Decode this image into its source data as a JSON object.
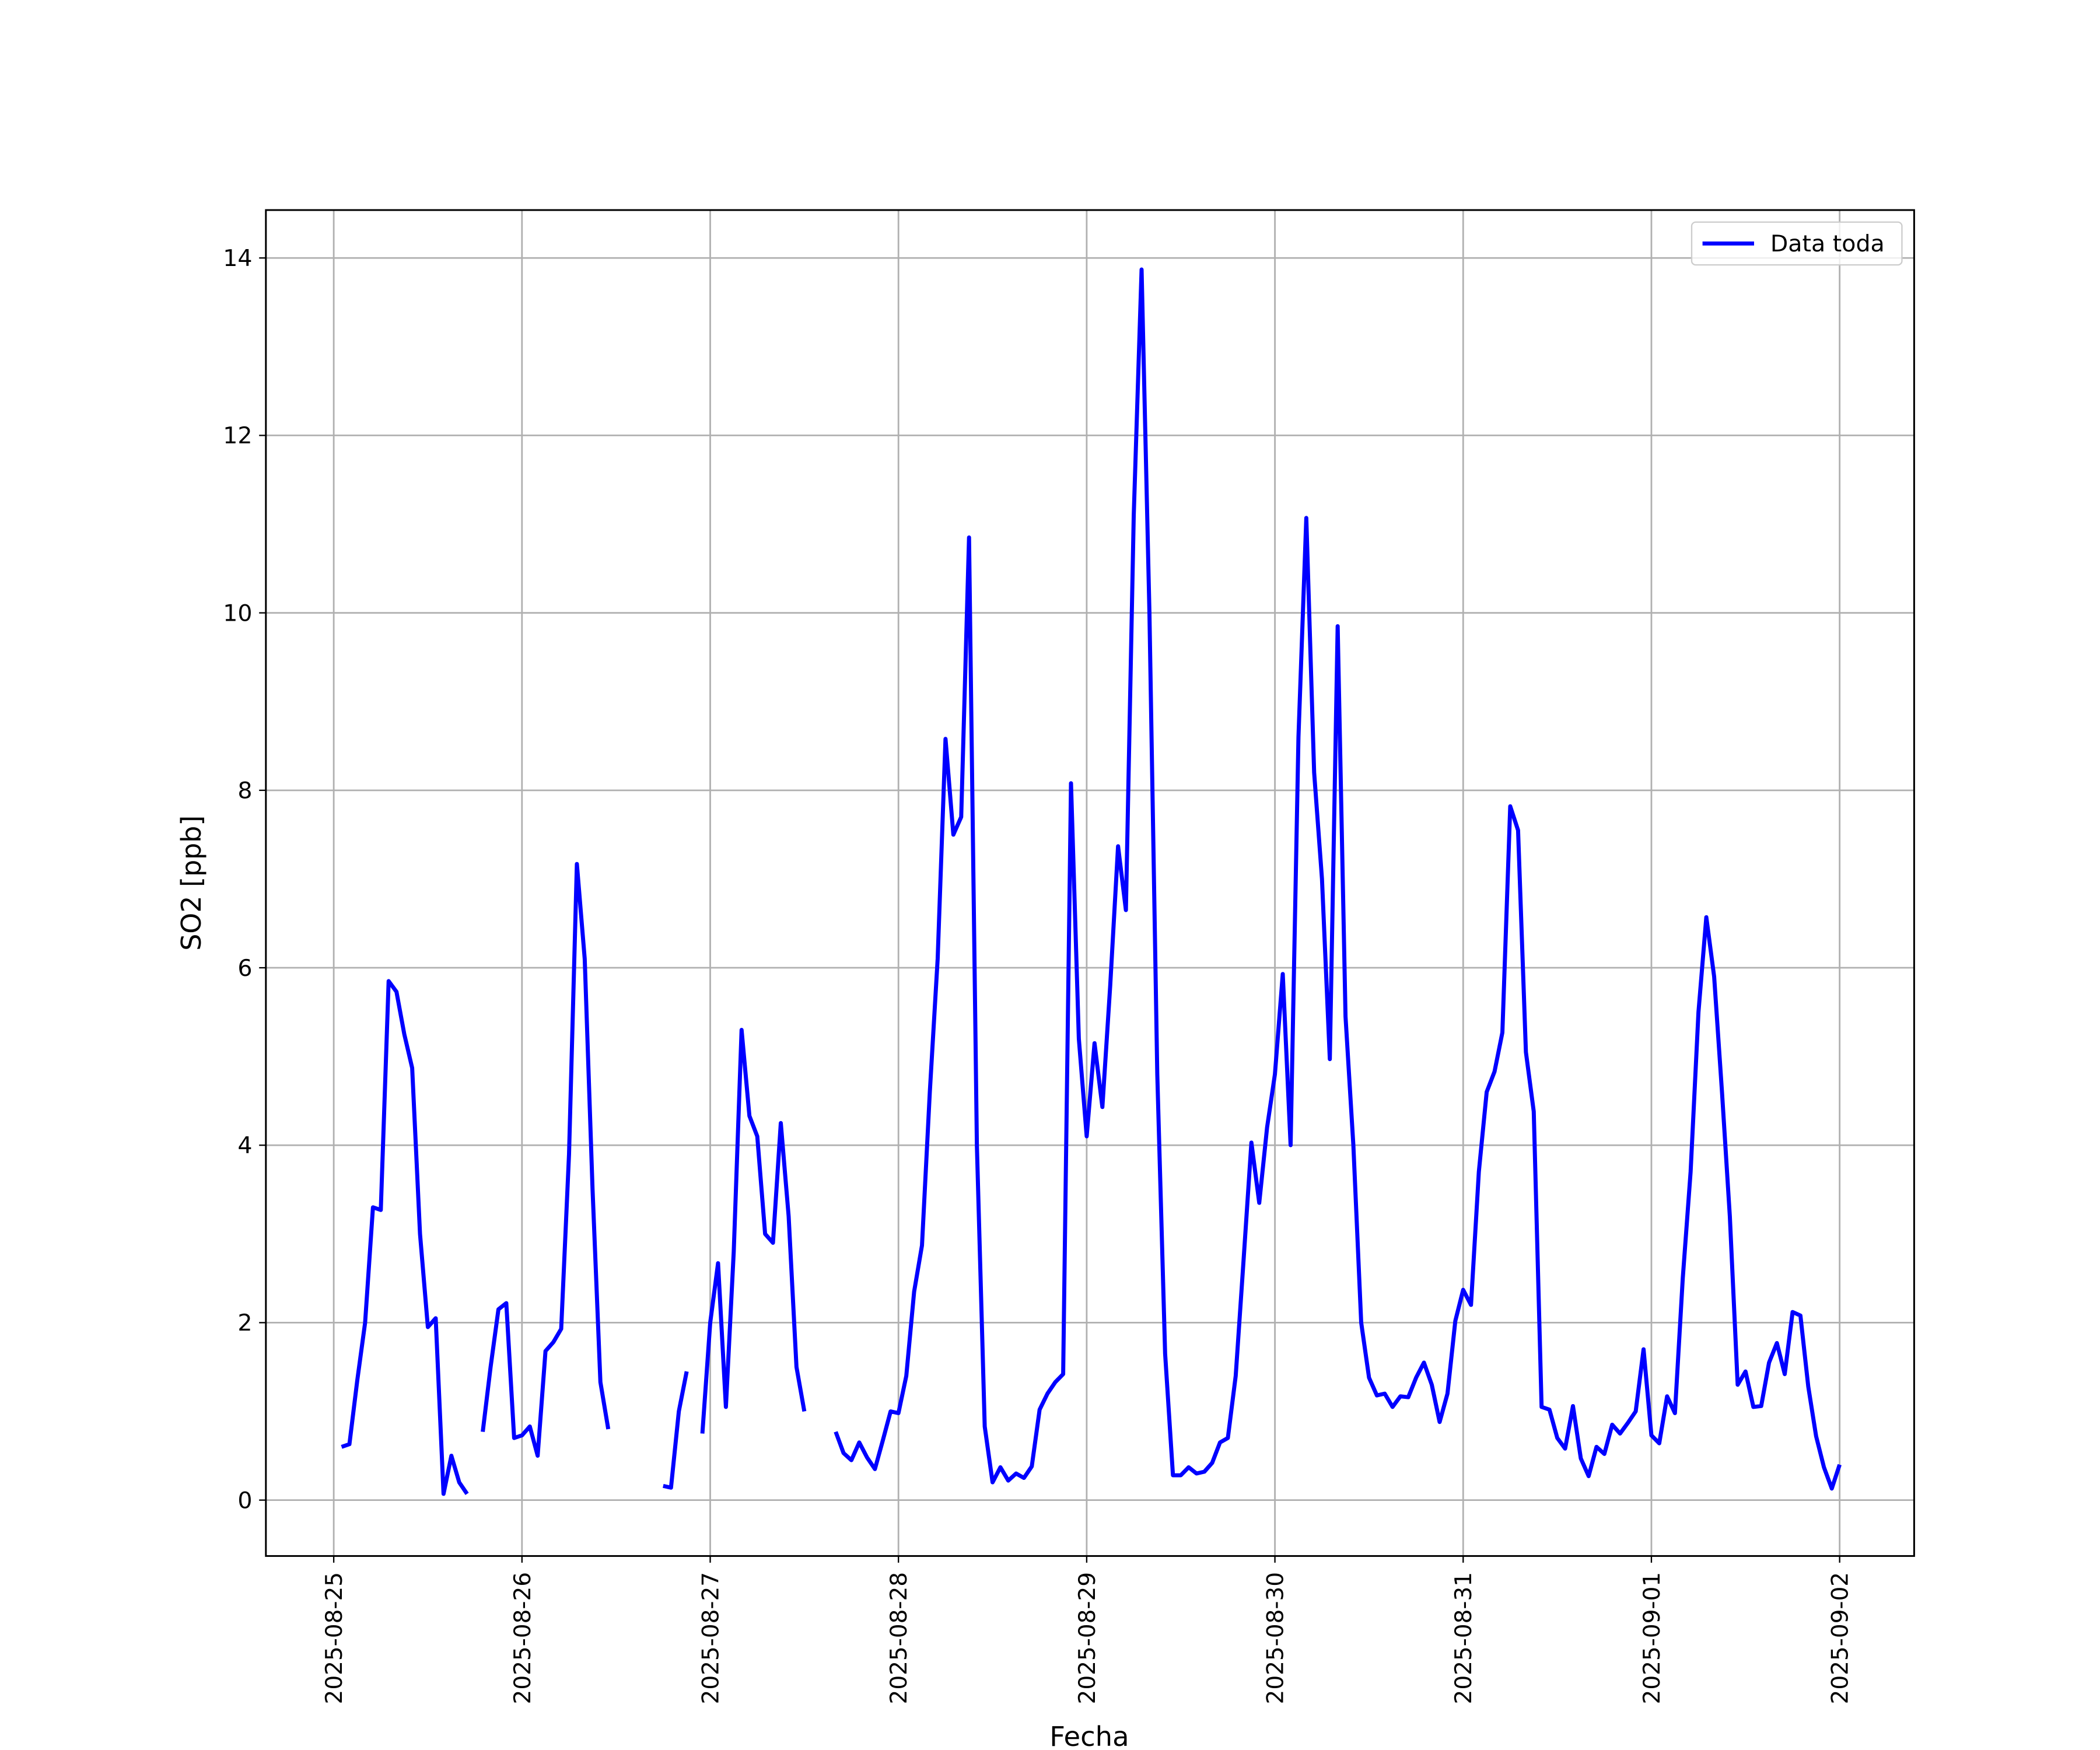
{
  "chart_data": {
    "type": "line",
    "xlabel": "Fecha",
    "ylabel": "SO2 [ppb]",
    "x": [
      "2025-08-25 01:00",
      "2025-08-25 02:00",
      "2025-08-25 03:00",
      "2025-08-25 04:00",
      "2025-08-25 05:00",
      "2025-08-25 06:00",
      "2025-08-25 07:00",
      "2025-08-25 08:00",
      "2025-08-25 09:00",
      "2025-08-25 10:00",
      "2025-08-25 11:00",
      "2025-08-25 12:00",
      "2025-08-25 13:00",
      "2025-08-25 14:00",
      "2025-08-25 15:00",
      "2025-08-25 16:00",
      "2025-08-25 17:00",
      "2025-08-25 18:00",
      "2025-08-25 19:00",
      "2025-08-25 20:00",
      "2025-08-25 21:00",
      "2025-08-25 22:00",
      "2025-08-25 23:00",
      "2025-08-26 00:00",
      "2025-08-26 01:00",
      "2025-08-26 02:00",
      "2025-08-26 03:00",
      "2025-08-26 04:00",
      "2025-08-26 05:00",
      "2025-08-26 06:00",
      "2025-08-26 07:00",
      "2025-08-26 08:00",
      "2025-08-26 09:00",
      "2025-08-26 10:00",
      "2025-08-26 11:00",
      "2025-08-26 12:00",
      "2025-08-26 13:00",
      "2025-08-26 14:00",
      "2025-08-26 15:00",
      "2025-08-26 16:00",
      "2025-08-26 17:00",
      "2025-08-26 18:00",
      "2025-08-26 19:00",
      "2025-08-26 20:00",
      "2025-08-26 21:00",
      "2025-08-26 22:00",
      "2025-08-26 23:00",
      "2025-08-27 00:00",
      "2025-08-27 01:00",
      "2025-08-27 02:00",
      "2025-08-27 03:00",
      "2025-08-27 04:00",
      "2025-08-27 05:00",
      "2025-08-27 06:00",
      "2025-08-27 07:00",
      "2025-08-27 08:00",
      "2025-08-27 09:00",
      "2025-08-27 10:00",
      "2025-08-27 11:00",
      "2025-08-27 12:00",
      "2025-08-27 13:00",
      "2025-08-27 14:00",
      "2025-08-27 15:00",
      "2025-08-27 16:00",
      "2025-08-27 17:00",
      "2025-08-27 18:00",
      "2025-08-27 19:00",
      "2025-08-27 20:00",
      "2025-08-27 21:00",
      "2025-08-27 22:00",
      "2025-08-27 23:00",
      "2025-08-28 00:00",
      "2025-08-28 01:00",
      "2025-08-28 02:00",
      "2025-08-28 03:00",
      "2025-08-28 04:00",
      "2025-08-28 05:00",
      "2025-08-28 06:00",
      "2025-08-28 07:00",
      "2025-08-28 08:00",
      "2025-08-28 09:00",
      "2025-08-28 10:00",
      "2025-08-28 11:00",
      "2025-08-28 12:00",
      "2025-08-28 13:00",
      "2025-08-28 14:00",
      "2025-08-28 15:00",
      "2025-08-28 16:00",
      "2025-08-28 17:00",
      "2025-08-28 18:00",
      "2025-08-28 19:00",
      "2025-08-28 20:00",
      "2025-08-28 21:00",
      "2025-08-28 22:00",
      "2025-08-28 23:00",
      "2025-08-29 00:00",
      "2025-08-29 01:00",
      "2025-08-29 02:00",
      "2025-08-29 03:00",
      "2025-08-29 04:00",
      "2025-08-29 05:00",
      "2025-08-29 06:00",
      "2025-08-29 07:00",
      "2025-08-29 08:00",
      "2025-08-29 09:00",
      "2025-08-29 10:00",
      "2025-08-29 11:00",
      "2025-08-29 12:00",
      "2025-08-29 13:00",
      "2025-08-29 14:00",
      "2025-08-29 15:00",
      "2025-08-29 16:00",
      "2025-08-29 17:00",
      "2025-08-29 18:00",
      "2025-08-29 19:00",
      "2025-08-29 20:00",
      "2025-08-29 21:00",
      "2025-08-29 22:00",
      "2025-08-29 23:00",
      "2025-08-30 00:00",
      "2025-08-30 01:00",
      "2025-08-30 02:00",
      "2025-08-30 03:00",
      "2025-08-30 04:00",
      "2025-08-30 05:00",
      "2025-08-30 06:00",
      "2025-08-30 07:00",
      "2025-08-30 08:00",
      "2025-08-30 09:00",
      "2025-08-30 10:00",
      "2025-08-30 11:00",
      "2025-08-30 12:00",
      "2025-08-30 13:00",
      "2025-08-30 14:00",
      "2025-08-30 15:00",
      "2025-08-30 16:00",
      "2025-08-30 17:00",
      "2025-08-30 18:00",
      "2025-08-30 19:00",
      "2025-08-30 20:00",
      "2025-08-30 21:00",
      "2025-08-30 22:00",
      "2025-08-30 23:00",
      "2025-08-31 00:00",
      "2025-08-31 01:00",
      "2025-08-31 02:00",
      "2025-08-31 03:00",
      "2025-08-31 04:00",
      "2025-08-31 05:00",
      "2025-08-31 06:00",
      "2025-08-31 07:00",
      "2025-08-31 08:00",
      "2025-08-31 09:00",
      "2025-08-31 10:00",
      "2025-08-31 11:00",
      "2025-08-31 12:00",
      "2025-08-31 13:00",
      "2025-08-31 14:00",
      "2025-08-31 15:00",
      "2025-08-31 16:00",
      "2025-08-31 17:00",
      "2025-08-31 18:00",
      "2025-08-31 19:00",
      "2025-08-31 20:00",
      "2025-08-31 21:00",
      "2025-08-31 22:00",
      "2025-08-31 23:00",
      "2025-09-01 00:00",
      "2025-09-01 01:00",
      "2025-09-01 02:00",
      "2025-09-01 03:00",
      "2025-09-01 04:00",
      "2025-09-01 05:00",
      "2025-09-01 06:00",
      "2025-09-01 07:00",
      "2025-09-01 08:00",
      "2025-09-01 09:00",
      "2025-09-01 10:00",
      "2025-09-01 11:00",
      "2025-09-01 12:00",
      "2025-09-01 13:00",
      "2025-09-01 14:00",
      "2025-09-01 15:00",
      "2025-09-01 16:00",
      "2025-09-01 17:00",
      "2025-09-01 18:00",
      "2025-09-01 19:00",
      "2025-09-01 20:00",
      "2025-09-01 21:00",
      "2025-09-01 22:00",
      "2025-09-01 23:00",
      "2025-09-02 00:00"
    ],
    "series": [
      {
        "name": "Data toda",
        "color": "#0000ff",
        "values": [
          0.6,
          0.63,
          1.35,
          2.0,
          3.3,
          3.27,
          5.85,
          5.73,
          5.25,
          4.87,
          3.0,
          1.95,
          2.05,
          0.07,
          0.5,
          0.2,
          0.07,
          null,
          0.77,
          1.5,
          2.15,
          2.22,
          0.7,
          0.73,
          0.83,
          0.5,
          1.68,
          1.78,
          1.93,
          3.9,
          7.17,
          6.1,
          3.5,
          1.33,
          0.8,
          null,
          null,
          null,
          null,
          null,
          null,
          0.16,
          0.14,
          1.0,
          1.45,
          null,
          0.75,
          2.0,
          2.67,
          1.05,
          2.8,
          5.3,
          4.33,
          4.1,
          3.0,
          2.9,
          4.25,
          3.2,
          1.5,
          1.0,
          null,
          null,
          null,
          0.77,
          0.53,
          0.45,
          0.65,
          0.48,
          0.35,
          0.67,
          1.0,
          0.98,
          1.4,
          2.35,
          2.87,
          4.6,
          6.1,
          8.58,
          7.5,
          7.7,
          10.85,
          4.0,
          0.83,
          0.2,
          0.37,
          0.22,
          0.3,
          0.25,
          0.38,
          1.02,
          1.2,
          1.33,
          1.42,
          8.08,
          5.2,
          4.1,
          5.15,
          4.43,
          5.8,
          7.37,
          6.65,
          11.1,
          13.87,
          10.0,
          4.8,
          1.65,
          0.28,
          0.28,
          0.37,
          0.3,
          0.32,
          0.42,
          0.65,
          0.7,
          1.4,
          2.7,
          4.03,
          3.35,
          4.2,
          4.8,
          5.93,
          4.0,
          8.6,
          11.07,
          8.2,
          7.0,
          4.97,
          9.85,
          5.45,
          4.0,
          2.0,
          1.38,
          1.18,
          1.2,
          1.05,
          1.17,
          1.16,
          1.38,
          1.55,
          1.3,
          0.88,
          1.2,
          2.02,
          2.37,
          2.2,
          3.7,
          4.6,
          4.83,
          5.27,
          7.82,
          7.55,
          5.05,
          4.38,
          1.05,
          1.02,
          0.7,
          0.58,
          1.06,
          0.47,
          0.27,
          0.6,
          0.52,
          0.85,
          0.75,
          0.87,
          1.0,
          1.7,
          0.73,
          0.64,
          1.17,
          0.98,
          2.5,
          3.7,
          5.5,
          6.57,
          5.9,
          4.6,
          3.2,
          1.3,
          1.45,
          1.05,
          1.06,
          1.55,
          1.77,
          1.42,
          2.12,
          2.08,
          1.28,
          0.72,
          0.37,
          0.13,
          0.4
        ]
      }
    ],
    "xlim": [
      "2025-08-24 15:21",
      "2025-09-02 09:30"
    ],
    "xticks": [
      "2025-08-25",
      "2025-08-26",
      "2025-08-27",
      "2025-08-28",
      "2025-08-29",
      "2025-08-30",
      "2025-08-31",
      "2025-09-01",
      "2025-09-02"
    ],
    "ylim": [
      -0.63,
      14.54
    ],
    "yticks": [
      0,
      2,
      4,
      6,
      8,
      10,
      12,
      14
    ],
    "grid": true,
    "legend": "upper right"
  }
}
